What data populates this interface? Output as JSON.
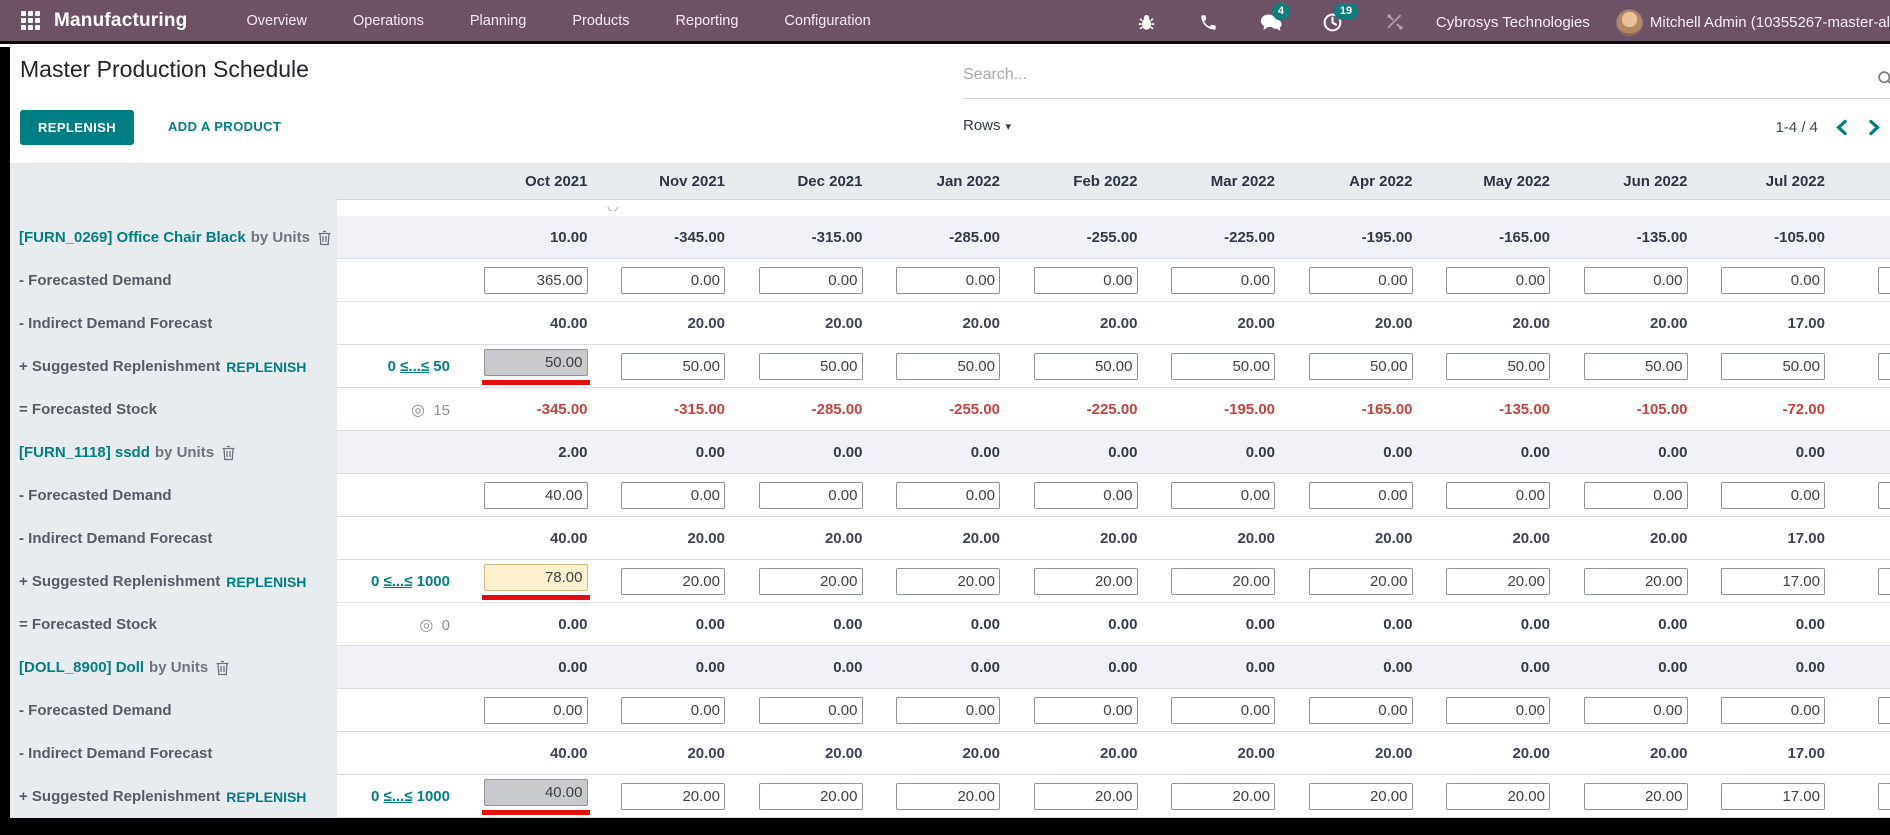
{
  "topbar": {
    "brand": "Manufacturing",
    "menu": [
      "Overview",
      "Operations",
      "Planning",
      "Products",
      "Reporting",
      "Configuration"
    ],
    "badges": {
      "messages": "4",
      "activities": "19"
    },
    "company": "Cybrosys Technologies",
    "user": "Mitchell Admin (10355267-master-al",
    "icons": [
      "apps-grid-icon",
      "bug-icon",
      "phone-icon",
      "messages-icon",
      "activities-clock-icon",
      "tools-icon"
    ]
  },
  "header": {
    "title": "Master Production Schedule",
    "search_placeholder": "Search..."
  },
  "toolbar": {
    "replenish": "REPLENISH",
    "add_product": "ADD A PRODUCT",
    "rows": "Rows",
    "pager": "1-4 / 4"
  },
  "colors": {
    "topbar": "#6d5164",
    "accent_teal": "#017e84",
    "badge_teal": "#0d7d7d",
    "negative_red": "#c4433c",
    "highlight_underline_red": "#e60c0c",
    "header_gray": "#e9ecef",
    "product_row": "#f0f2f7"
  },
  "table": {
    "months": [
      "Oct 2021",
      "Nov 2021",
      "Dec 2021",
      "Jan 2022",
      "Feb 2022",
      "Mar 2022",
      "Apr 2022",
      "May 2022",
      "Jun 2022",
      "Jul 2022"
    ],
    "row_labels": {
      "demand": "- Forecasted Demand",
      "indirect": "- Indirect Demand Forecast",
      "suggested": "+ Suggested Replenishment",
      "replenish_link": "REPLENISH",
      "stock": "= Forecasted Stock",
      "by_units": "by Units"
    },
    "products": [
      {
        "code_name": "[FURN_0269] Office Chair Black",
        "range": "0 ≤...≤ 50",
        "target": "15",
        "summary": [
          "10.00",
          "-345.00",
          "-315.00",
          "-285.00",
          "-255.00",
          "-225.00",
          "-195.00",
          "-165.00",
          "-135.00",
          "-105.00"
        ],
        "demand": [
          "365.00",
          "0.00",
          "0.00",
          "0.00",
          "0.00",
          "0.00",
          "0.00",
          "0.00",
          "0.00",
          "0.00"
        ],
        "indirect": [
          "40.00",
          "20.00",
          "20.00",
          "20.00",
          "20.00",
          "20.00",
          "20.00",
          "20.00",
          "20.00",
          "17.00"
        ],
        "replenish": [
          "50.00",
          "50.00",
          "50.00",
          "50.00",
          "50.00",
          "50.00",
          "50.00",
          "50.00",
          "50.00",
          "50.00"
        ],
        "replenish_first_bg": "gray",
        "stock": [
          "-345.00",
          "-315.00",
          "-285.00",
          "-255.00",
          "-225.00",
          "-195.00",
          "-165.00",
          "-135.00",
          "-105.00",
          "-72.00"
        ]
      },
      {
        "code_name": "[FURN_1118] ssdd",
        "range": "0 ≤...≤ 1000",
        "target": "0",
        "summary": [
          "2.00",
          "0.00",
          "0.00",
          "0.00",
          "0.00",
          "0.00",
          "0.00",
          "0.00",
          "0.00",
          "0.00"
        ],
        "demand": [
          "40.00",
          "0.00",
          "0.00",
          "0.00",
          "0.00",
          "0.00",
          "0.00",
          "0.00",
          "0.00",
          "0.00"
        ],
        "indirect": [
          "40.00",
          "20.00",
          "20.00",
          "20.00",
          "20.00",
          "20.00",
          "20.00",
          "20.00",
          "20.00",
          "17.00"
        ],
        "replenish": [
          "78.00",
          "20.00",
          "20.00",
          "20.00",
          "20.00",
          "20.00",
          "20.00",
          "20.00",
          "20.00",
          "17.00"
        ],
        "replenish_first_bg": "yellow",
        "stock": [
          "0.00",
          "0.00",
          "0.00",
          "0.00",
          "0.00",
          "0.00",
          "0.00",
          "0.00",
          "0.00",
          "0.00"
        ]
      },
      {
        "code_name": "[DOLL_8900] Doll",
        "range": "0 ≤...≤ 1000",
        "summary": [
          "0.00",
          "0.00",
          "0.00",
          "0.00",
          "0.00",
          "0.00",
          "0.00",
          "0.00",
          "0.00",
          "0.00"
        ],
        "demand": [
          "0.00",
          "0.00",
          "0.00",
          "0.00",
          "0.00",
          "0.00",
          "0.00",
          "0.00",
          "0.00",
          "0.00"
        ],
        "indirect": [
          "40.00",
          "20.00",
          "20.00",
          "20.00",
          "20.00",
          "20.00",
          "20.00",
          "20.00",
          "20.00",
          "17.00"
        ],
        "replenish": [
          "40.00",
          "20.00",
          "20.00",
          "20.00",
          "20.00",
          "20.00",
          "20.00",
          "20.00",
          "20.00",
          "17.00"
        ],
        "replenish_first_bg": "gray"
      }
    ]
  }
}
